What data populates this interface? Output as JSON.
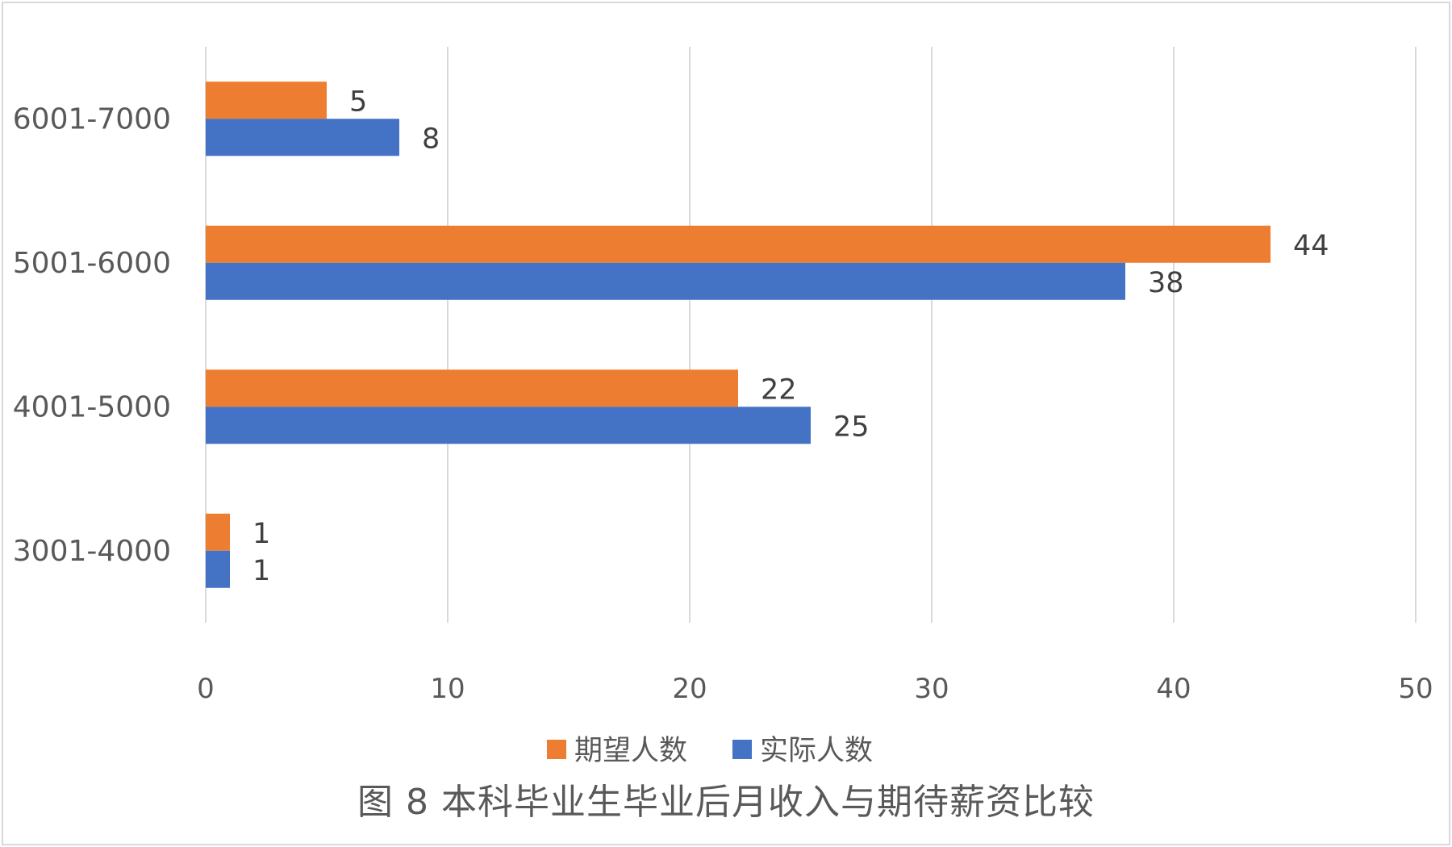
{
  "caption": "图 8  本科毕业生毕业后月收入与期待薪资比较",
  "chart_data": {
    "type": "bar",
    "orientation": "horizontal",
    "categories": [
      "3001-4000",
      "4001-5000",
      "5001-6000",
      "6001-7000"
    ],
    "series": [
      {
        "name": "期望人数",
        "values": [
          1,
          22,
          44,
          5
        ],
        "color": "#ed7d31"
      },
      {
        "name": "实际人数",
        "values": [
          1,
          25,
          38,
          8
        ],
        "color": "#4472c4"
      }
    ],
    "xlim": [
      0,
      50
    ],
    "xticks": [
      "0",
      "10",
      "20",
      "30",
      "40",
      "50"
    ],
    "title": "",
    "xlabel": "",
    "ylabel": "",
    "grid": "vertical",
    "legend": "bottom",
    "data_labels": true
  }
}
